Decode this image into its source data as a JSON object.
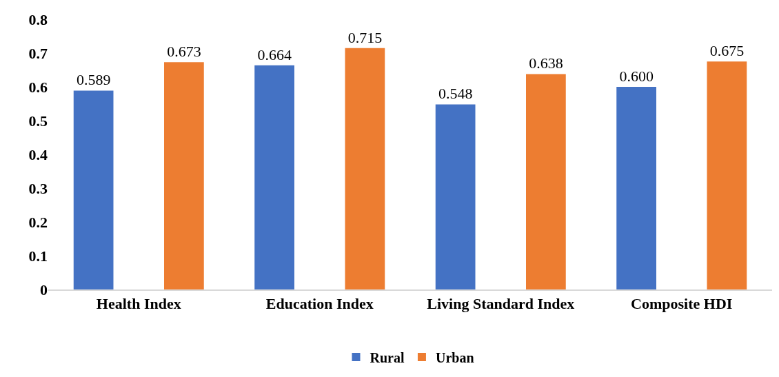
{
  "chart_data": {
    "type": "bar",
    "categories": [
      "Health Index",
      "Education Index",
      "Living Standard Index",
      "Composite HDI"
    ],
    "series": [
      {
        "name": "Rural",
        "color": "#4472c4",
        "values": [
          0.589,
          0.664,
          0.548,
          0.6
        ],
        "value_labels": [
          "0.589",
          "0.664",
          "0.548",
          "0.600"
        ]
      },
      {
        "name": "Urban",
        "color": "#ed7d31",
        "values": [
          0.673,
          0.715,
          0.638,
          0.675
        ],
        "value_labels": [
          "0.673",
          "0.715",
          "0.638",
          "0.675"
        ]
      }
    ],
    "ylim": [
      0,
      0.8
    ],
    "yticks": [
      0,
      0.1,
      0.2,
      0.3,
      0.4,
      0.5,
      0.6,
      0.7,
      0.8
    ],
    "grid": false,
    "legend": "bottom"
  }
}
